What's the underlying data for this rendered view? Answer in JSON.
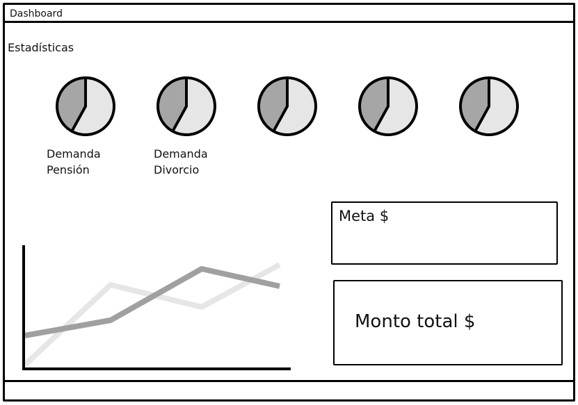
{
  "window": {
    "title": "Dashboard"
  },
  "stats": {
    "title": "Estadísticas",
    "pies": [
      {
        "line1": "Demanda",
        "line2": "Pensión",
        "value": 0.42
      },
      {
        "line1": "Demanda",
        "line2": "Divorcio",
        "value": 0.42
      },
      {
        "line1": "",
        "line2": "",
        "value": 0.42
      },
      {
        "line1": "",
        "line2": "",
        "value": 0.42
      },
      {
        "line1": "",
        "line2": "",
        "value": 0.42
      }
    ]
  },
  "cards": {
    "meta_label": "Meta $",
    "total_label": "Monto total $"
  },
  "colors": {
    "pie_dark": "#a6a6a6",
    "pie_light": "#e6e6e6",
    "line_dark": "#a0a0a0",
    "line_light": "#e6e6e6",
    "outline": "#000000"
  }
}
